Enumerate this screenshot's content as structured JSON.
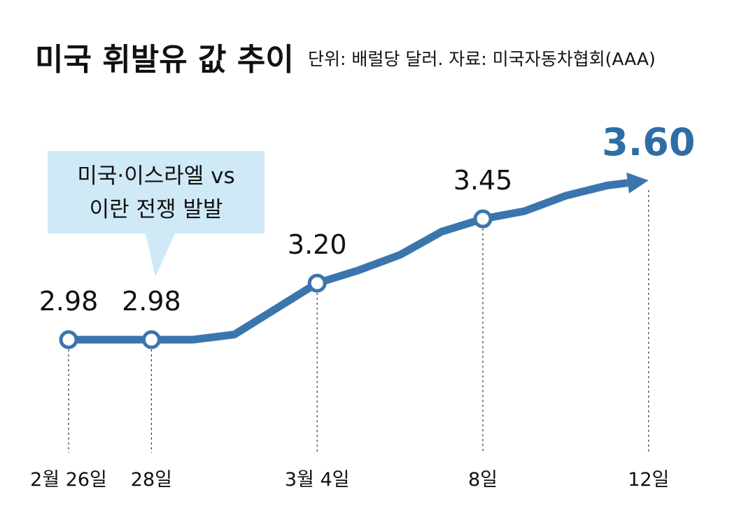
{
  "header": {
    "title": "미국 휘발유 값 추이",
    "subtitle": "단위: 배럴당 달러. 자료: 미국자동차협회(AAA)"
  },
  "callout": {
    "line1": "미국·이스라엘 vs",
    "line2": "이란 전쟁 발발"
  },
  "colors": {
    "line": "#3a76ad",
    "highlight": "#2e6ea6",
    "callout_bg": "#cfe9f6"
  },
  "chart_data": {
    "type": "line",
    "title": "미국 휘발유 값 추이",
    "unit": "배럴당 달러",
    "source": "미국자동차협회(AAA)",
    "x": [
      "2/26",
      "2/27",
      "2/28",
      "3/1",
      "3/2",
      "3/3",
      "3/4",
      "3/5",
      "3/6",
      "3/7",
      "3/8",
      "3/9",
      "3/10",
      "3/11",
      "3/12"
    ],
    "series": [
      {
        "values": [
          2.98,
          2.98,
          2.98,
          2.98,
          3.0,
          3.1,
          3.2,
          3.25,
          3.31,
          3.4,
          3.45,
          3.48,
          3.54,
          3.58,
          3.6
        ]
      }
    ],
    "marked_points": [
      {
        "x": "2/26",
        "y": 2.98,
        "label": "2.98"
      },
      {
        "x": "2/28",
        "y": 2.98,
        "label": "2.98"
      },
      {
        "x": "3/4",
        "y": 3.2,
        "label": "3.20"
      },
      {
        "x": "3/8",
        "y": 3.45,
        "label": "3.45"
      },
      {
        "x": "3/12",
        "y": 3.6,
        "label": "3.60"
      }
    ],
    "tick_labels": [
      {
        "x": "2/26",
        "label": "2월 26일"
      },
      {
        "x": "2/28",
        "label": "28일"
      },
      {
        "x": "3/4",
        "label": "3월 4일"
      },
      {
        "x": "3/8",
        "label": "8일"
      },
      {
        "x": "3/12",
        "label": "12일"
      }
    ],
    "ylim": [
      2.98,
      3.6
    ],
    "grid": false,
    "legend": "none"
  }
}
